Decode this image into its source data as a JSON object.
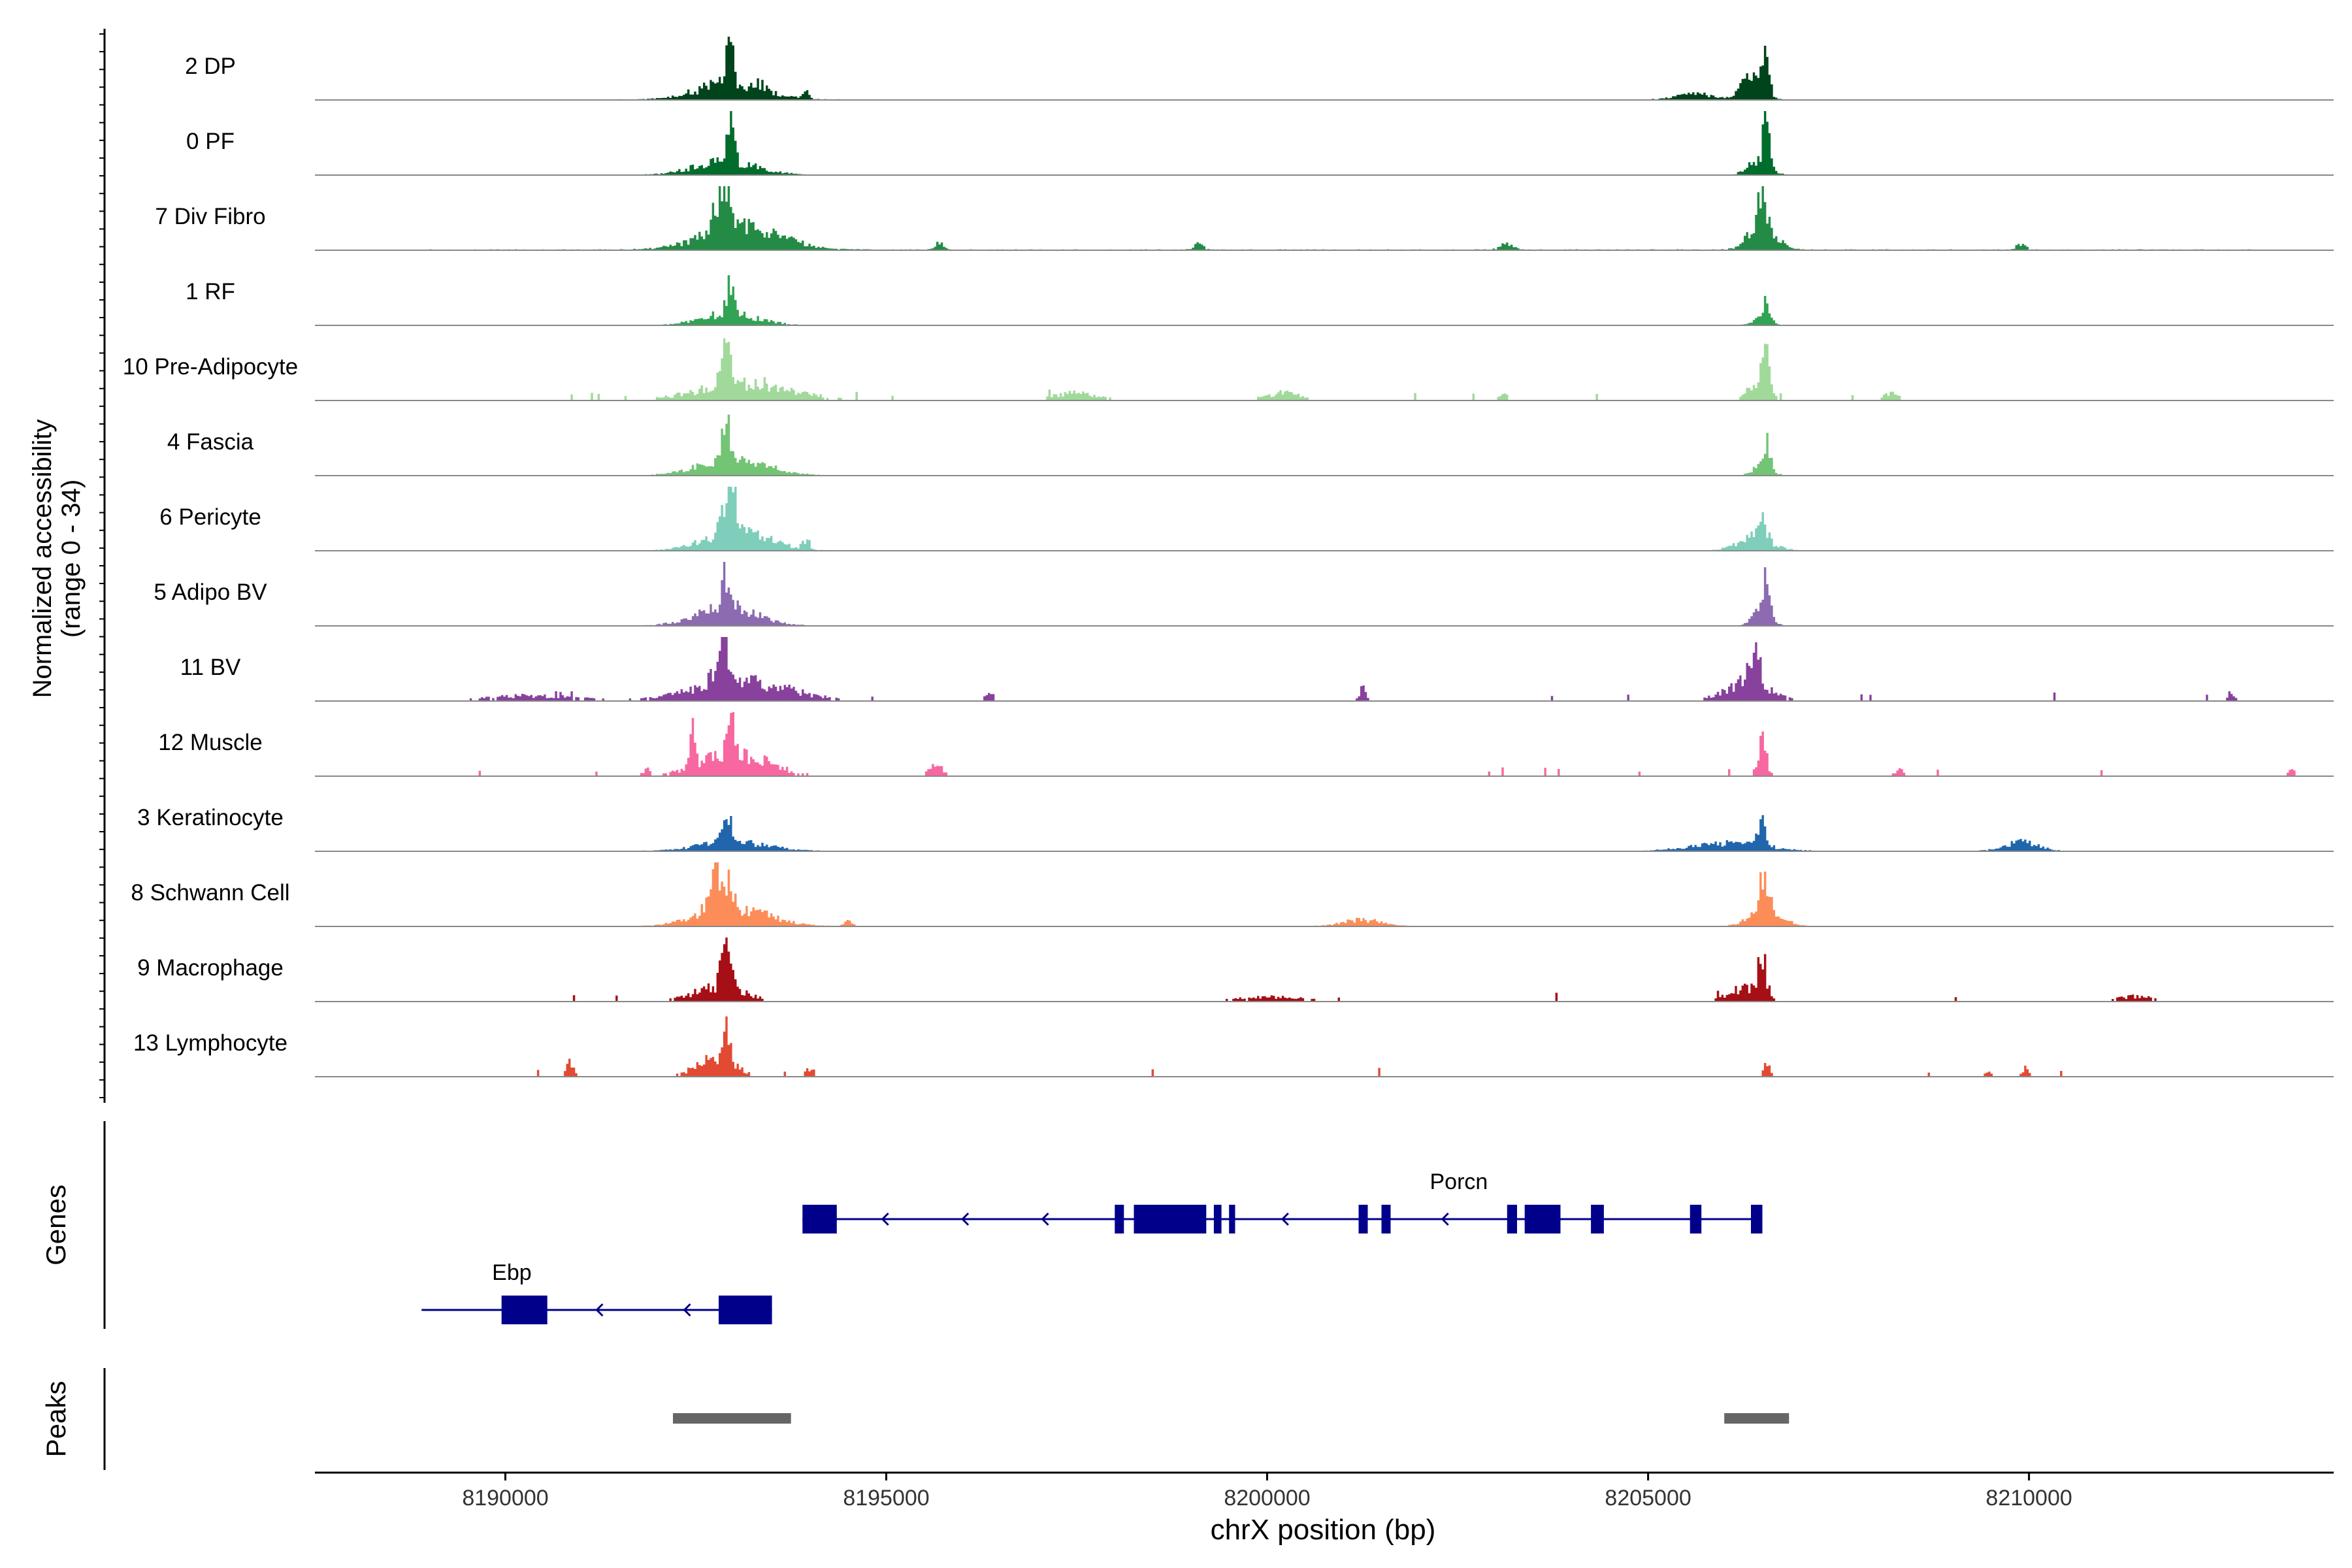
{
  "chart_data": {
    "type": "area",
    "title": "",
    "region": "chrX",
    "xlabel": "chrX position (bp)",
    "ylabel_line1": "Normalized accessibility",
    "ylabel_line2": "(range 0 - 34)",
    "y_range": [
      0,
      34
    ],
    "xlim": [
      8187500,
      8214000
    ],
    "x_ticks": [
      8190000,
      8195000,
      8200000,
      8205000,
      8210000
    ],
    "x_tick_labels": [
      "8190000",
      "8195000",
      "8200000",
      "8205000",
      "8210000"
    ],
    "panel_labels": {
      "genes": "Genes",
      "peaks": "Peaks"
    },
    "tracks": [
      {
        "name": "2 DP",
        "color": "#00441b",
        "style": "smooth",
        "noise": 0.07,
        "peaks": [
          [
            8192200,
            8193700,
            0.26
          ],
          [
            8192900,
            8193000,
            0.78
          ],
          [
            8193300,
            8193400,
            0.12
          ],
          [
            8193900,
            8194000,
            0.1
          ],
          [
            8206100,
            8206600,
            0.32
          ],
          [
            8206500,
            8206600,
            0.6
          ],
          [
            8205200,
            8206000,
            0.1
          ]
        ]
      },
      {
        "name": "0 PF",
        "color": "#006d2c",
        "style": "smooth",
        "noise": 0.05,
        "peaks": [
          [
            8192200,
            8193600,
            0.22
          ],
          [
            8192900,
            8193000,
            0.72
          ],
          [
            8206200,
            8206700,
            0.22
          ],
          [
            8206500,
            8206600,
            0.55
          ]
        ]
      },
      {
        "name": "7 Div Fibro",
        "color": "#238b45",
        "style": "smooth",
        "noise": 0.1,
        "peaks": [
          [
            8192200,
            8194000,
            0.35
          ],
          [
            8192700,
            8193000,
            0.8
          ],
          [
            8206200,
            8206800,
            0.4
          ],
          [
            8206400,
            8206600,
            0.7
          ],
          [
            8195600,
            8195800,
            0.12
          ],
          [
            8199000,
            8199200,
            0.1
          ],
          [
            8203000,
            8203300,
            0.1
          ],
          [
            8209800,
            8210000,
            0.1
          ]
        ]
      },
      {
        "name": "1 RF",
        "color": "#31a354",
        "style": "smooth",
        "noise": 0.03,
        "peaks": [
          [
            8192300,
            8193600,
            0.18
          ],
          [
            8192900,
            8193000,
            0.62
          ],
          [
            8206300,
            8206700,
            0.12
          ],
          [
            8206500,
            8206600,
            0.35
          ]
        ]
      },
      {
        "name": "10 Pre-Adipocyte",
        "color": "#a1d99b",
        "style": "sparse",
        "noise": 0.05,
        "peaks": [
          [
            8192100,
            8194200,
            0.28
          ],
          [
            8192800,
            8193000,
            0.72
          ],
          [
            8206200,
            8206700,
            0.3
          ],
          [
            8206500,
            8206600,
            0.42
          ],
          [
            8197000,
            8198000,
            0.12
          ],
          [
            8199800,
            8200600,
            0.12
          ],
          [
            8203000,
            8203200,
            0.1
          ],
          [
            8208000,
            8208400,
            0.1
          ]
        ]
      },
      {
        "name": "4 Fascia",
        "color": "#74c476",
        "style": "smooth",
        "noise": 0.03,
        "peaks": [
          [
            8192200,
            8193800,
            0.24
          ],
          [
            8192800,
            8193000,
            0.55
          ],
          [
            8206300,
            8206700,
            0.18
          ],
          [
            8206500,
            8206600,
            0.4
          ]
        ]
      },
      {
        "name": "6 Pericyte",
        "color": "#7fcdbb",
        "style": "smooth",
        "noise": 0.02,
        "peaks": [
          [
            8192300,
            8193800,
            0.28
          ],
          [
            8192800,
            8193100,
            0.75
          ],
          [
            8193900,
            8194000,
            0.15
          ],
          [
            8206000,
            8206800,
            0.2
          ],
          [
            8206400,
            8206600,
            0.38
          ]
        ]
      },
      {
        "name": "5 Adipo BV",
        "color": "#8c6bb1",
        "style": "smooth",
        "noise": 0.03,
        "peaks": [
          [
            8192200,
            8193600,
            0.28
          ],
          [
            8192800,
            8193000,
            0.58
          ],
          [
            8206300,
            8206700,
            0.25
          ],
          [
            8206500,
            8206600,
            0.62
          ]
        ]
      },
      {
        "name": "11 BV",
        "color": "#88419d",
        "style": "sparse",
        "noise": 0.08,
        "peaks": [
          [
            8192000,
            8194200,
            0.3
          ],
          [
            8192700,
            8193000,
            0.9
          ],
          [
            8205800,
            8206800,
            0.3
          ],
          [
            8206300,
            8206500,
            0.65
          ],
          [
            8189200,
            8191500,
            0.08
          ],
          [
            8196300,
            8196400,
            0.2
          ],
          [
            8201200,
            8201300,
            0.2
          ],
          [
            8212600,
            8212700,
            0.12
          ]
        ]
      },
      {
        "name": "12 Muscle",
        "color": "#f768a1",
        "style": "sparse",
        "noise": 0.02,
        "peaks": [
          [
            8192200,
            8193800,
            0.35
          ],
          [
            8192400,
            8192500,
            0.52
          ],
          [
            8192900,
            8193000,
            0.55
          ],
          [
            8195500,
            8195800,
            0.18
          ],
          [
            8206400,
            8206600,
            0.55
          ],
          [
            8208200,
            8208400,
            0.1
          ],
          [
            8213400,
            8213500,
            0.1
          ],
          [
            8191800,
            8191900,
            0.1
          ]
        ]
      },
      {
        "name": "3 Keratinocyte",
        "color": "#2166ac",
        "style": "smooth",
        "noise": 0.05,
        "peaks": [
          [
            8192200,
            8193800,
            0.14
          ],
          [
            8192800,
            8193000,
            0.44
          ],
          [
            8205200,
            8206900,
            0.12
          ],
          [
            8206400,
            8206600,
            0.42
          ],
          [
            8209500,
            8210300,
            0.14
          ]
        ]
      },
      {
        "name": "8 Schwann Cell",
        "color": "#fc8d59",
        "style": "smooth",
        "noise": 0.05,
        "peaks": [
          [
            8192200,
            8193800,
            0.28
          ],
          [
            8192600,
            8193000,
            0.7
          ],
          [
            8206200,
            8206900,
            0.3
          ],
          [
            8206400,
            8206600,
            0.52
          ],
          [
            8200800,
            8201700,
            0.1
          ],
          [
            8194400,
            8194600,
            0.08
          ]
        ]
      },
      {
        "name": "9 Macrophage",
        "color": "#a50f15",
        "style": "sparse",
        "noise": 0.06,
        "peaks": [
          [
            8192200,
            8193400,
            0.22
          ],
          [
            8192800,
            8193000,
            0.75
          ],
          [
            8205900,
            8206700,
            0.22
          ],
          [
            8206400,
            8206600,
            0.5
          ],
          [
            8199300,
            8200800,
            0.08
          ],
          [
            8211000,
            8211800,
            0.08
          ]
        ]
      },
      {
        "name": "13 Lymphocyte",
        "color": "#e34a33",
        "style": "sparse",
        "noise": 0.0,
        "peaks": [
          [
            8190800,
            8190900,
            0.22
          ],
          [
            8192300,
            8193200,
            0.28
          ],
          [
            8192800,
            8193000,
            0.42
          ],
          [
            8193900,
            8194100,
            0.14
          ],
          [
            8206500,
            8206600,
            0.22
          ],
          [
            8209400,
            8209500,
            0.1
          ],
          [
            8209900,
            8210000,
            0.12
          ]
        ]
      }
    ],
    "genes": [
      {
        "name": "Porcn",
        "strand": "-",
        "start": 8193900,
        "end": 8206500,
        "row": 0,
        "exons": [
          [
            8193900,
            8194350
          ],
          [
            8198000,
            8198120
          ],
          [
            8198250,
            8199200
          ],
          [
            8199300,
            8199400
          ],
          [
            8199500,
            8199580
          ],
          [
            8201200,
            8201320
          ],
          [
            8201500,
            8201620
          ],
          [
            8203150,
            8203280
          ],
          [
            8203380,
            8203850
          ],
          [
            8204250,
            8204420
          ],
          [
            8205550,
            8205700
          ],
          [
            8206350,
            8206500
          ]
        ]
      },
      {
        "name": "Ebp",
        "strand": "-",
        "start": 8188900,
        "end": 8193500,
        "row": 1,
        "exons": [
          [
            8189950,
            8190550
          ],
          [
            8192800,
            8193500
          ]
        ]
      }
    ],
    "peak_regions": [
      [
        8192200,
        8193750
      ],
      [
        8206000,
        8206850
      ]
    ]
  }
}
